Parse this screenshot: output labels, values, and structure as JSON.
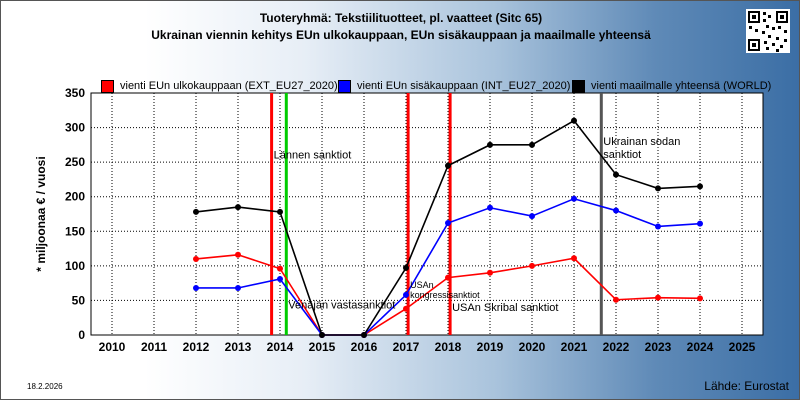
{
  "header": {
    "title": "Tuoteryhmä: Tekstiilituotteet, pl. vaatteet (Sitc 65)",
    "subtitle": "Ukrainan viennin kehitys EUn ulkokauppaan, EUn sisäkauppaan ja maailmalle yhteensä"
  },
  "footer": {
    "date": "18.2.2026",
    "source": "Lähde: Eurostat"
  },
  "icons": {
    "qr": "qr-code-icon"
  },
  "chart_data": {
    "type": "line",
    "title": "Tuoteryhmä: Tekstiilituotteet, pl. vaatteet (Sitc 65)",
    "subtitle": "Ukrainan viennin kehitys EUn ulkokauppaan, EUn sisäkauppaan ja maailmalle yhteensä",
    "xlabel": "",
    "ylabel": "* miljoonaa € / vuosi",
    "x": [
      2010,
      2011,
      2012,
      2013,
      2014,
      2015,
      2016,
      2017,
      2018,
      2019,
      2020,
      2021,
      2022,
      2023,
      2024,
      2025
    ],
    "xlim": [
      2010,
      2025
    ],
    "ylim": [
      0,
      350
    ],
    "yticks": [
      0,
      50,
      100,
      150,
      200,
      250,
      300,
      350
    ],
    "grid": true,
    "legend_position": "top",
    "series": [
      {
        "name": "vienti EUn ulkokauppaan (EXT_EU27_2020)",
        "color": "#ff0000",
        "points": [
          [
            2012,
            110
          ],
          [
            2013,
            116
          ],
          [
            2014,
            96
          ],
          [
            2015,
            0
          ],
          [
            2016,
            0
          ],
          [
            2017,
            38
          ],
          [
            2018,
            83
          ],
          [
            2019,
            90
          ],
          [
            2020,
            100
          ],
          [
            2021,
            111
          ],
          [
            2022,
            51
          ],
          [
            2023,
            54
          ],
          [
            2024,
            53
          ]
        ]
      },
      {
        "name": "vienti EUn sisäkauppaan (INT_EU27_2020)",
        "color": "#0000ff",
        "points": [
          [
            2012,
            68
          ],
          [
            2013,
            68
          ],
          [
            2014,
            81
          ],
          [
            2015,
            0
          ],
          [
            2016,
            0
          ],
          [
            2017,
            58
          ],
          [
            2018,
            162
          ],
          [
            2019,
            184
          ],
          [
            2020,
            172
          ],
          [
            2021,
            197
          ],
          [
            2022,
            180
          ],
          [
            2023,
            157
          ],
          [
            2024,
            161
          ]
        ]
      },
      {
        "name": "vienti maailmalle yhteensä (WORLD)",
        "color": "#000000",
        "points": [
          [
            2012,
            178
          ],
          [
            2013,
            185
          ],
          [
            2014,
            178
          ],
          [
            2015,
            0
          ],
          [
            2016,
            0
          ],
          [
            2017,
            97
          ],
          [
            2018,
            245
          ],
          [
            2019,
            275
          ],
          [
            2020,
            275
          ],
          [
            2021,
            310
          ],
          [
            2022,
            232
          ],
          [
            2023,
            212
          ],
          [
            2024,
            215
          ]
        ]
      }
    ],
    "annotations": [
      {
        "x": 2013.8,
        "color": "#ff0000",
        "label": "Lännen sanktiot",
        "label_y": 255
      },
      {
        "x": 2014.15,
        "color": "#00cc00",
        "label": "Venäjän vastasanktiot",
        "label_y": 38
      },
      {
        "x": 2017.05,
        "color": "#ff0000",
        "label": "USAn kongressisanktiot",
        "label_y": 68
      },
      {
        "x": 2018.05,
        "color": "#ff0000",
        "label": "USAn Skribal sanktiot",
        "label_y": 35
      },
      {
        "x": 2021.65,
        "color": "#555555",
        "label": "Ukrainan sodan sanktiot",
        "label_y": 275
      }
    ]
  }
}
